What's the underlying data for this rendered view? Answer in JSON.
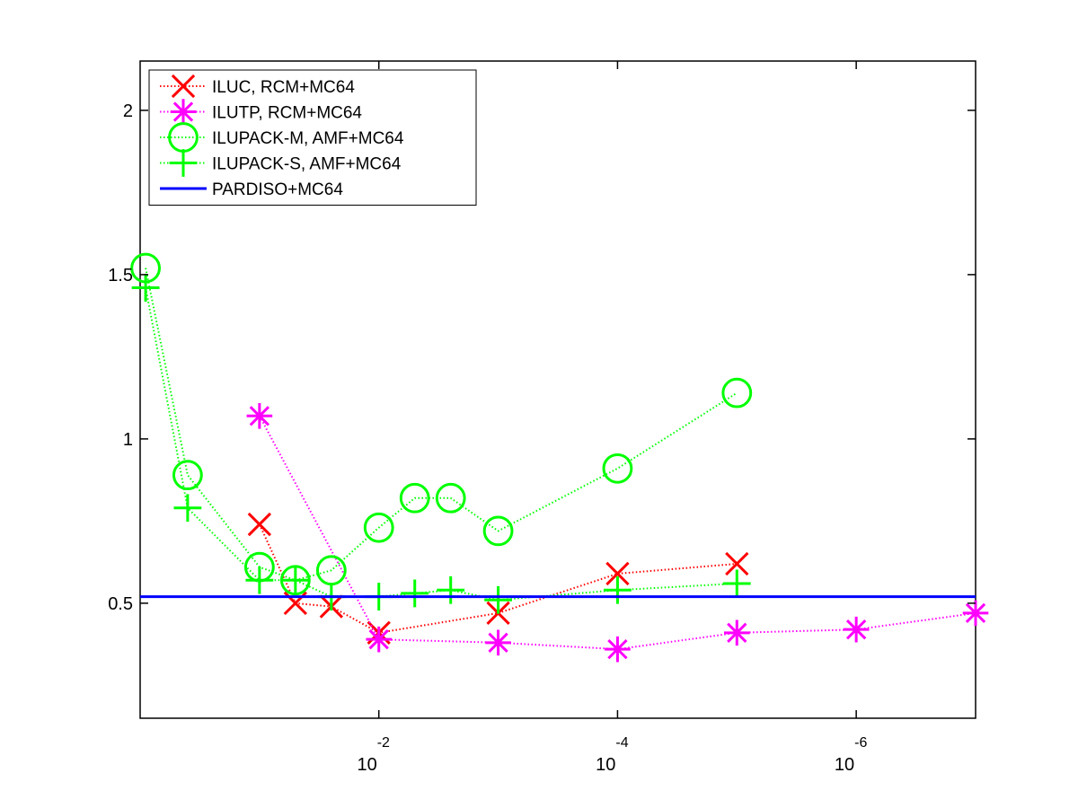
{
  "chart_data": {
    "type": "line",
    "title": "",
    "xlabel": "",
    "ylabel": "",
    "x_scale": "log",
    "x_direction": "reversed",
    "xlim": [
      1,
      1e-07
    ],
    "ylim": [
      0.15,
      2.15
    ],
    "grid": false,
    "legend_position": "top-left",
    "x_ticks": [
      {
        "value": 0.01,
        "base": "10",
        "exp": "-2"
      },
      {
        "value": 0.0001,
        "base": "10",
        "exp": "-4"
      },
      {
        "value": 1e-06,
        "base": "10",
        "exp": "-6"
      }
    ],
    "y_ticks": [
      {
        "value": 0.5,
        "label": "0.5"
      },
      {
        "value": 1.0,
        "label": "1"
      },
      {
        "value": 1.5,
        "label": "1.5"
      },
      {
        "value": 2.0,
        "label": "2"
      }
    ],
    "series": [
      {
        "name": "ILUC, RCM+MC64",
        "color": "#ff0000",
        "marker": "x",
        "line_style": "dotted",
        "points": [
          [
            0.1,
            0.74
          ],
          [
            0.05,
            0.5
          ],
          [
            0.025,
            0.49
          ],
          [
            0.01,
            0.41
          ],
          [
            0.001,
            0.47
          ],
          [
            0.0001,
            0.59
          ],
          [
            1e-05,
            0.62
          ]
        ]
      },
      {
        "name": "ILUTP, RCM+MC64",
        "color": "#ff00ff",
        "marker": "asterisk",
        "line_style": "dotted",
        "points": [
          [
            0.1,
            1.07
          ],
          [
            0.01,
            0.39
          ],
          [
            0.001,
            0.38
          ],
          [
            0.0001,
            0.36
          ],
          [
            1e-05,
            0.41
          ],
          [
            1e-06,
            0.42
          ],
          [
            1e-07,
            0.47
          ]
        ]
      },
      {
        "name": "ILUPACK-M, AMF+MC64",
        "color": "#00ff00",
        "marker": "circle",
        "line_style": "dotted",
        "points": [
          [
            0.9,
            1.52
          ],
          [
            0.4,
            0.89
          ],
          [
            0.1,
            0.61
          ],
          [
            0.05,
            0.57
          ],
          [
            0.025,
            0.6
          ],
          [
            0.01,
            0.73
          ],
          [
            0.005,
            0.82
          ],
          [
            0.0025,
            0.82
          ],
          [
            0.001,
            0.72
          ],
          [
            0.0001,
            0.91
          ],
          [
            1e-05,
            1.14
          ]
        ]
      },
      {
        "name": "ILUPACK-S, AMF+MC64",
        "color": "#00ff00",
        "marker": "plus",
        "line_style": "dotted",
        "points": [
          [
            0.9,
            1.46
          ],
          [
            0.4,
            0.79
          ],
          [
            0.1,
            0.57
          ],
          [
            0.05,
            0.57
          ],
          [
            0.025,
            0.52
          ],
          [
            0.01,
            0.52
          ],
          [
            0.005,
            0.53
          ],
          [
            0.0025,
            0.54
          ],
          [
            0.001,
            0.51
          ],
          [
            0.0001,
            0.54
          ],
          [
            1e-05,
            0.56
          ]
        ]
      },
      {
        "name": "PARDISO+MC64",
        "color": "#0000ff",
        "marker": "none",
        "line_style": "solid",
        "points": [
          [
            1,
            0.52
          ],
          [
            1e-07,
            0.52
          ]
        ]
      }
    ]
  }
}
